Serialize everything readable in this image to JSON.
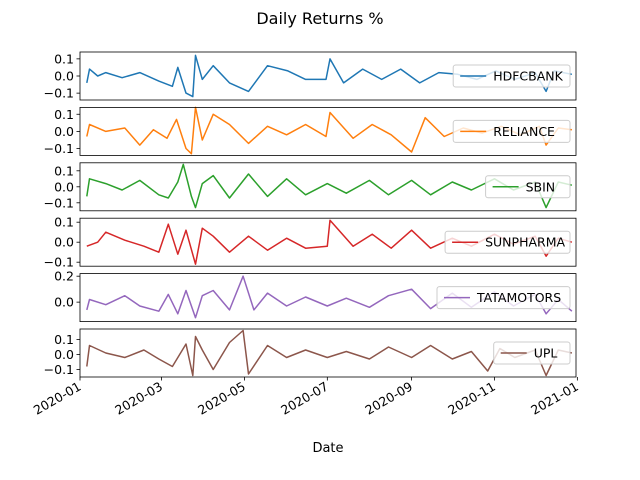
{
  "figure": {
    "title": "Daily Returns %",
    "xlabel": "Date"
  },
  "chart_data": {
    "type": "line",
    "title": "Daily Returns %",
    "xlabel": "Date",
    "xlim": [
      "2020-01-01",
      "2020-12-31"
    ],
    "x_ticks": [
      "2020-01",
      "2020-03",
      "2020-05",
      "2020-07",
      "2020-09",
      "2020-11",
      "2021-01"
    ],
    "series": [
      {
        "name": "HDFCBANK",
        "color": "#1f77b4",
        "ylim": [
          -0.14,
          0.14
        ],
        "y_ticks": [
          0.1,
          0.0,
          -0.1
        ],
        "y_tick_labels": [
          "0.1",
          "0.0",
          "−0.1"
        ],
        "legend_loc": "right",
        "points": [
          [
            "2020-01-06",
            -0.04
          ],
          [
            "2020-01-08",
            0.04
          ],
          [
            "2020-01-14",
            0.0
          ],
          [
            "2020-01-20",
            0.02
          ],
          [
            "2020-02-01",
            -0.01
          ],
          [
            "2020-02-14",
            0.02
          ],
          [
            "2020-02-28",
            -0.03
          ],
          [
            "2020-03-09",
            -0.06
          ],
          [
            "2020-03-13",
            0.05
          ],
          [
            "2020-03-19",
            -0.1
          ],
          [
            "2020-03-24",
            -0.12
          ],
          [
            "2020-03-26",
            0.12
          ],
          [
            "2020-03-31",
            -0.02
          ],
          [
            "2020-04-08",
            0.06
          ],
          [
            "2020-04-20",
            -0.04
          ],
          [
            "2020-05-04",
            -0.09
          ],
          [
            "2020-05-18",
            0.06
          ],
          [
            "2020-06-02",
            0.03
          ],
          [
            "2020-06-15",
            -0.02
          ],
          [
            "2020-06-30",
            -0.02
          ],
          [
            "2020-07-03",
            0.1
          ],
          [
            "2020-07-13",
            -0.04
          ],
          [
            "2020-07-27",
            0.04
          ],
          [
            "2020-08-10",
            -0.02
          ],
          [
            "2020-08-24",
            0.04
          ],
          [
            "2020-09-07",
            -0.04
          ],
          [
            "2020-09-21",
            0.02
          ],
          [
            "2020-10-05",
            0.01
          ],
          [
            "2020-10-19",
            -0.02
          ],
          [
            "2020-11-02",
            0.03
          ],
          [
            "2020-11-16",
            -0.02
          ],
          [
            "2020-12-01",
            0.02
          ],
          [
            "2020-12-09",
            -0.09
          ],
          [
            "2020-12-15",
            0.03
          ],
          [
            "2020-12-28",
            0.01
          ]
        ]
      },
      {
        "name": "RELIANCE",
        "color": "#ff7f0e",
        "ylim": [
          -0.14,
          0.14
        ],
        "y_ticks": [
          0.1,
          0.0,
          -0.1
        ],
        "y_tick_labels": [
          "0.1",
          "0.0",
          "−0.1"
        ],
        "legend_loc": "right",
        "points": [
          [
            "2020-01-06",
            -0.03
          ],
          [
            "2020-01-08",
            0.04
          ],
          [
            "2020-01-20",
            0.0
          ],
          [
            "2020-02-03",
            0.02
          ],
          [
            "2020-02-14",
            -0.08
          ],
          [
            "2020-02-24",
            0.01
          ],
          [
            "2020-03-05",
            -0.04
          ],
          [
            "2020-03-12",
            0.07
          ],
          [
            "2020-03-19",
            -0.1
          ],
          [
            "2020-03-23",
            -0.13
          ],
          [
            "2020-03-26",
            0.14
          ],
          [
            "2020-03-31",
            -0.05
          ],
          [
            "2020-04-08",
            0.1
          ],
          [
            "2020-04-20",
            0.04
          ],
          [
            "2020-05-04",
            -0.07
          ],
          [
            "2020-05-18",
            0.03
          ],
          [
            "2020-06-01",
            -0.02
          ],
          [
            "2020-06-15",
            0.04
          ],
          [
            "2020-06-30",
            -0.03
          ],
          [
            "2020-07-03",
            0.11
          ],
          [
            "2020-07-20",
            -0.04
          ],
          [
            "2020-08-03",
            0.04
          ],
          [
            "2020-08-17",
            -0.02
          ],
          [
            "2020-09-01",
            -0.12
          ],
          [
            "2020-09-11",
            0.08
          ],
          [
            "2020-09-25",
            -0.03
          ],
          [
            "2020-10-09",
            0.02
          ],
          [
            "2020-10-23",
            -0.01
          ],
          [
            "2020-11-06",
            0.03
          ],
          [
            "2020-11-20",
            -0.02
          ],
          [
            "2020-12-04",
            0.03
          ],
          [
            "2020-12-09",
            -0.08
          ],
          [
            "2020-12-18",
            0.02
          ],
          [
            "2020-12-28",
            0.01
          ]
        ]
      },
      {
        "name": "SBIN",
        "color": "#2ca02c",
        "ylim": [
          -0.15,
          0.15
        ],
        "y_ticks": [
          0.1,
          0.0,
          -0.1
        ],
        "y_tick_labels": [
          "0.1",
          "0.0",
          "−0.1"
        ],
        "legend_loc": "right",
        "points": [
          [
            "2020-01-06",
            -0.06
          ],
          [
            "2020-01-08",
            0.05
          ],
          [
            "2020-01-20",
            0.02
          ],
          [
            "2020-02-01",
            -0.02
          ],
          [
            "2020-02-14",
            0.04
          ],
          [
            "2020-02-28",
            -0.05
          ],
          [
            "2020-03-06",
            -0.07
          ],
          [
            "2020-03-13",
            0.03
          ],
          [
            "2020-03-17",
            0.14
          ],
          [
            "2020-03-23",
            -0.06
          ],
          [
            "2020-03-26",
            -0.13
          ],
          [
            "2020-03-31",
            0.02
          ],
          [
            "2020-04-08",
            0.07
          ],
          [
            "2020-04-20",
            -0.07
          ],
          [
            "2020-05-04",
            0.08
          ],
          [
            "2020-05-18",
            -0.06
          ],
          [
            "2020-06-01",
            0.05
          ],
          [
            "2020-06-15",
            -0.05
          ],
          [
            "2020-07-01",
            0.02
          ],
          [
            "2020-07-15",
            -0.04
          ],
          [
            "2020-08-01",
            0.04
          ],
          [
            "2020-08-15",
            -0.05
          ],
          [
            "2020-09-01",
            0.04
          ],
          [
            "2020-09-15",
            -0.05
          ],
          [
            "2020-10-01",
            0.03
          ],
          [
            "2020-10-15",
            -0.02
          ],
          [
            "2020-11-01",
            0.05
          ],
          [
            "2020-11-15",
            -0.02
          ],
          [
            "2020-12-01",
            0.03
          ],
          [
            "2020-12-09",
            -0.13
          ],
          [
            "2020-12-18",
            0.03
          ],
          [
            "2020-12-28",
            0.01
          ]
        ]
      },
      {
        "name": "SUNPHARMA",
        "color": "#d62728",
        "ylim": [
          -0.12,
          0.12
        ],
        "y_ticks": [
          0.1,
          0.0,
          -0.1
        ],
        "y_tick_labels": [
          "0.1",
          "0.0",
          "−0.1"
        ],
        "legend_loc": "right",
        "points": [
          [
            "2020-01-06",
            -0.02
          ],
          [
            "2020-01-14",
            0.0
          ],
          [
            "2020-01-20",
            0.05
          ],
          [
            "2020-02-03",
            0.01
          ],
          [
            "2020-02-17",
            -0.02
          ],
          [
            "2020-02-28",
            -0.05
          ],
          [
            "2020-03-06",
            0.09
          ],
          [
            "2020-03-13",
            -0.06
          ],
          [
            "2020-03-19",
            0.06
          ],
          [
            "2020-03-26",
            -0.11
          ],
          [
            "2020-03-31",
            0.07
          ],
          [
            "2020-04-08",
            0.03
          ],
          [
            "2020-04-20",
            -0.05
          ],
          [
            "2020-05-04",
            0.03
          ],
          [
            "2020-05-18",
            -0.04
          ],
          [
            "2020-06-01",
            0.02
          ],
          [
            "2020-06-15",
            -0.03
          ],
          [
            "2020-07-01",
            -0.02
          ],
          [
            "2020-07-03",
            0.11
          ],
          [
            "2020-07-20",
            -0.02
          ],
          [
            "2020-08-03",
            0.04
          ],
          [
            "2020-08-17",
            -0.03
          ],
          [
            "2020-09-01",
            0.06
          ],
          [
            "2020-09-15",
            -0.03
          ],
          [
            "2020-10-01",
            0.02
          ],
          [
            "2020-10-15",
            -0.02
          ],
          [
            "2020-11-01",
            0.04
          ],
          [
            "2020-11-15",
            -0.01
          ],
          [
            "2020-12-01",
            0.03
          ],
          [
            "2020-12-09",
            -0.07
          ],
          [
            "2020-12-18",
            0.02
          ],
          [
            "2020-12-28",
            0.0
          ]
        ]
      },
      {
        "name": "TATAMOTORS",
        "color": "#9467bd",
        "ylim": [
          -0.15,
          0.22
        ],
        "y_ticks": [
          0.2,
          0.0
        ],
        "y_tick_labels": [
          "0.2",
          "0.0"
        ],
        "legend_loc": "right",
        "points": [
          [
            "2020-01-06",
            -0.06
          ],
          [
            "2020-01-08",
            0.02
          ],
          [
            "2020-01-20",
            -0.02
          ],
          [
            "2020-02-03",
            0.05
          ],
          [
            "2020-02-14",
            -0.03
          ],
          [
            "2020-02-28",
            -0.07
          ],
          [
            "2020-03-06",
            0.06
          ],
          [
            "2020-03-13",
            -0.09
          ],
          [
            "2020-03-19",
            0.09
          ],
          [
            "2020-03-26",
            -0.12
          ],
          [
            "2020-03-31",
            0.05
          ],
          [
            "2020-04-08",
            0.09
          ],
          [
            "2020-04-20",
            -0.06
          ],
          [
            "2020-04-30",
            0.2
          ],
          [
            "2020-05-08",
            -0.06
          ],
          [
            "2020-05-18",
            0.07
          ],
          [
            "2020-06-01",
            -0.03
          ],
          [
            "2020-06-15",
            0.04
          ],
          [
            "2020-07-01",
            -0.03
          ],
          [
            "2020-07-15",
            0.03
          ],
          [
            "2020-08-01",
            -0.04
          ],
          [
            "2020-08-15",
            0.05
          ],
          [
            "2020-09-01",
            0.1
          ],
          [
            "2020-09-15",
            -0.05
          ],
          [
            "2020-10-01",
            0.07
          ],
          [
            "2020-10-15",
            -0.04
          ],
          [
            "2020-11-01",
            0.08
          ],
          [
            "2020-11-15",
            -0.03
          ],
          [
            "2020-12-01",
            0.06
          ],
          [
            "2020-12-09",
            -0.09
          ],
          [
            "2020-12-18",
            0.02
          ],
          [
            "2020-12-28",
            -0.07
          ]
        ]
      },
      {
        "name": "UPL",
        "color": "#8c564b",
        "ylim": [
          -0.15,
          0.17
        ],
        "y_ticks": [
          0.1,
          0.0,
          -0.1
        ],
        "y_tick_labels": [
          "0.1",
          "0.0",
          "−0.1"
        ],
        "legend_loc": "right",
        "points": [
          [
            "2020-01-06",
            -0.08
          ],
          [
            "2020-01-08",
            0.06
          ],
          [
            "2020-01-20",
            0.01
          ],
          [
            "2020-02-03",
            -0.02
          ],
          [
            "2020-02-17",
            0.03
          ],
          [
            "2020-02-28",
            -0.03
          ],
          [
            "2020-03-09",
            -0.08
          ],
          [
            "2020-03-19",
            0.07
          ],
          [
            "2020-03-24",
            -0.14
          ],
          [
            "2020-03-26",
            0.12
          ],
          [
            "2020-03-31",
            0.03
          ],
          [
            "2020-04-08",
            -0.1
          ],
          [
            "2020-04-20",
            0.08
          ],
          [
            "2020-04-30",
            0.16
          ],
          [
            "2020-05-04",
            -0.13
          ],
          [
            "2020-05-18",
            0.06
          ],
          [
            "2020-06-01",
            -0.02
          ],
          [
            "2020-06-15",
            0.03
          ],
          [
            "2020-07-01",
            -0.02
          ],
          [
            "2020-07-15",
            0.02
          ],
          [
            "2020-08-01",
            -0.03
          ],
          [
            "2020-08-15",
            0.05
          ],
          [
            "2020-09-01",
            -0.02
          ],
          [
            "2020-09-15",
            0.06
          ],
          [
            "2020-10-01",
            -0.03
          ],
          [
            "2020-10-15",
            0.02
          ],
          [
            "2020-10-27",
            -0.11
          ],
          [
            "2020-11-05",
            0.04
          ],
          [
            "2020-11-16",
            -0.02
          ],
          [
            "2020-12-01",
            0.03
          ],
          [
            "2020-12-09",
            -0.14
          ],
          [
            "2020-12-18",
            0.03
          ],
          [
            "2020-12-28",
            0.01
          ]
        ]
      }
    ]
  }
}
